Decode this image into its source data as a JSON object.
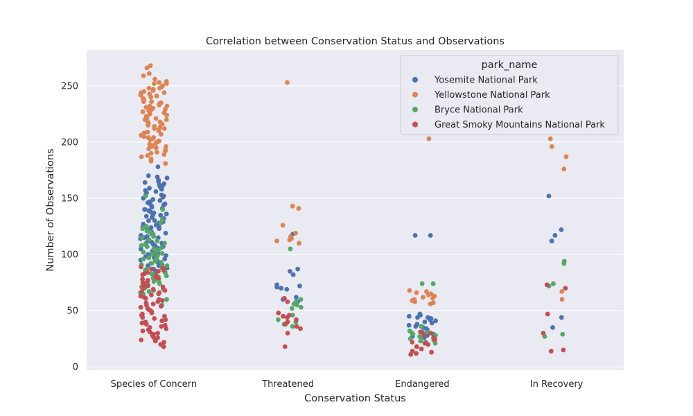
{
  "chart_data": {
    "type": "scatter",
    "subtype": "strip",
    "title": "Correlation between Conservation Status and Observations",
    "xlabel": "Conservation Status",
    "ylabel": "Number of Observations",
    "categories": [
      "Species of Concern",
      "Threatened",
      "Endangered",
      "In Recovery"
    ],
    "ylim": [
      -3,
      282
    ],
    "yticks": [
      0,
      50,
      100,
      150,
      200,
      250
    ],
    "grid": true,
    "legend": {
      "title": "park_name",
      "placement": "top-right"
    },
    "series": [
      {
        "name": "Yosemite National Park",
        "color": "#4c72b0",
        "points": {
          "Species of Concern": [
            178,
            170,
            169,
            168,
            166,
            165,
            164,
            163,
            162,
            161,
            160,
            159,
            158,
            157,
            156,
            155,
            154,
            153,
            152,
            151,
            150,
            149,
            148,
            147,
            146,
            145,
            145,
            144,
            143,
            142,
            141,
            140,
            140,
            139,
            138,
            137,
            136,
            135,
            135,
            134,
            133,
            132,
            131,
            130,
            130,
            129,
            128,
            127,
            126,
            125,
            125,
            124,
            123,
            122,
            121,
            120,
            120,
            119,
            118,
            117,
            116,
            115,
            115,
            114,
            113,
            112,
            111,
            110,
            110,
            109,
            108,
            107,
            106,
            105,
            105,
            104,
            103,
            102,
            101,
            100,
            100,
            99,
            98,
            97,
            96,
            95,
            95,
            94,
            93,
            92,
            91,
            90,
            90,
            89,
            88,
            87,
            86,
            85
          ],
          "Threatened": [
            118,
            87,
            85,
            82,
            73,
            72,
            71,
            70,
            69,
            62,
            60,
            58
          ],
          "Endangered": [
            117,
            117,
            47,
            46,
            45,
            44,
            44,
            43,
            42,
            41,
            40,
            39,
            38,
            37,
            36,
            35,
            34,
            33,
            32,
            31,
            30,
            29,
            28,
            27,
            26
          ],
          "In Recovery": [
            152,
            122,
            117,
            112,
            44,
            35
          ]
        }
      },
      {
        "name": "Yellowstone National Park",
        "color": "#dd8452",
        "points": {
          "Species of Concern": [
            268,
            266,
            261,
            259,
            256,
            254,
            253,
            252,
            250,
            249,
            248,
            247,
            246,
            245,
            244,
            243,
            242,
            241,
            240,
            239,
            238,
            237,
            236,
            235,
            234,
            233,
            232,
            231,
            230,
            229,
            228,
            227,
            226,
            225,
            224,
            223,
            222,
            221,
            220,
            219,
            218,
            217,
            216,
            215,
            214,
            213,
            212,
            211,
            210,
            209,
            208,
            207,
            206,
            205,
            204,
            203,
            202,
            201,
            200,
            199,
            198,
            197,
            196,
            195,
            194,
            193,
            192,
            191,
            190,
            189,
            188,
            187,
            185,
            183,
            181,
            252,
            244,
            236,
            228,
            220,
            212,
            204,
            196,
            248,
            232,
            216
          ],
          "Threatened": [
            253,
            143,
            141,
            126,
            119,
            116,
            114,
            113,
            112,
            110
          ],
          "Endangered": [
            203,
            68,
            67,
            66,
            65,
            64,
            63,
            62,
            61,
            60,
            59,
            58,
            57,
            56
          ],
          "In Recovery": [
            203,
            196,
            187,
            176,
            67,
            60
          ]
        }
      },
      {
        "name": "Bryce National Park",
        "color": "#55a868",
        "points": {
          "Species of Concern": [
            152,
            140,
            131,
            128,
            125,
            124,
            123,
            121,
            120,
            118,
            116,
            115,
            113,
            112,
            110,
            109,
            108,
            107,
            106,
            105,
            104,
            103,
            102,
            101,
            100,
            99,
            98,
            97,
            96,
            95,
            94,
            93,
            92,
            91,
            90,
            89,
            88,
            87,
            86,
            85,
            84,
            83,
            82,
            81,
            80,
            79,
            78,
            77,
            76,
            75,
            74,
            73,
            72,
            71,
            70,
            69,
            68,
            67,
            66,
            65,
            60,
            55
          ],
          "Threatened": [
            105,
            60,
            58,
            56,
            55,
            53,
            52,
            46,
            42,
            40,
            38,
            36
          ],
          "Endangered": [
            74,
            74,
            36,
            32,
            31,
            30,
            29,
            28,
            27,
            26,
            25,
            24,
            23,
            22,
            21
          ],
          "In Recovery": [
            94,
            92,
            74,
            72,
            29,
            27
          ]
        }
      },
      {
        "name": "Great Smoky Mountains National Park",
        "color": "#c44e52",
        "points": {
          "Species of Concern": [
            89,
            88,
            87,
            86,
            85,
            84,
            83,
            82,
            81,
            80,
            79,
            78,
            77,
            76,
            75,
            74,
            73,
            72,
            71,
            70,
            69,
            68,
            67,
            66,
            65,
            64,
            63,
            62,
            61,
            60,
            59,
            58,
            57,
            56,
            55,
            54,
            53,
            52,
            51,
            50,
            49,
            48,
            47,
            46,
            45,
            44,
            43,
            42,
            41,
            40,
            39,
            38,
            37,
            36,
            35,
            34,
            33,
            32,
            31,
            30,
            29,
            28,
            27,
            26,
            25,
            24,
            23,
            22,
            20,
            18
          ],
          "Threatened": [
            61,
            58,
            48,
            46,
            45,
            44,
            42,
            40,
            38,
            36,
            34,
            30,
            18
          ],
          "Endangered": [
            31,
            30,
            28,
            26,
            25,
            24,
            22,
            21,
            20,
            18,
            16,
            14,
            13,
            12,
            11
          ],
          "In Recovery": [
            73,
            70,
            47,
            30,
            15,
            14
          ]
        }
      }
    ]
  }
}
